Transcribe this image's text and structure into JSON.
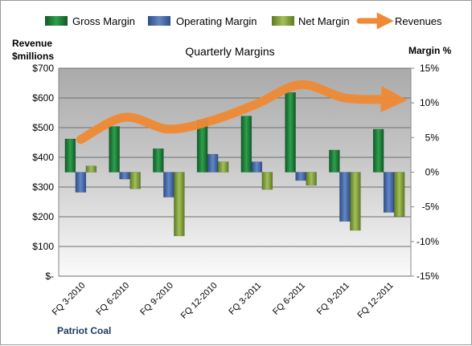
{
  "chart_data": {
    "type": "bar",
    "title": "Quarterly Margins",
    "company": "Patriot Coal",
    "y_left_label": [
      "Revenue",
      "$millions"
    ],
    "y_right_label": "Margin %",
    "y_left_ticks": [
      "$700",
      "$600",
      "$500",
      "$400",
      "$300",
      "$200",
      "$100",
      "$-"
    ],
    "y_right_ticks": [
      "15%",
      "10%",
      "5%",
      "0%",
      "-5%",
      "-10%",
      "-15%"
    ],
    "y_left_range": [
      0,
      700
    ],
    "y_right_range": [
      -15,
      15
    ],
    "categories": [
      "FQ 3-2010",
      "FQ 6-2010",
      "FQ 9-2010",
      "FQ 12-2010",
      "FQ 3-2011",
      "FQ 6-2011",
      "FQ 9-2011",
      "FQ 12-2011"
    ],
    "series": [
      {
        "name": "Gross Margin",
        "axis": "right",
        "color": "#1e8a3c",
        "values": [
          4.8,
          6.6,
          3.4,
          7.5,
          8.1,
          11.5,
          3.2,
          6.2
        ]
      },
      {
        "name": "Operating Margin",
        "axis": "right",
        "color": "#4a6fb0",
        "values": [
          -2.9,
          -1.0,
          -3.6,
          2.6,
          1.5,
          -1.2,
          -7.1,
          -5.8
        ]
      },
      {
        "name": "Net Margin",
        "axis": "right",
        "color": "#8aaa3e",
        "values": [
          0.9,
          -2.4,
          -9.2,
          1.5,
          -2.5,
          -1.9,
          -8.4,
          -6.4
        ]
      },
      {
        "name": "Revenues",
        "axis": "left",
        "color": "#ef8a35",
        "type": "line",
        "values": [
          460,
          535,
          495,
          525,
          580,
          645,
          600,
          595
        ]
      }
    ],
    "legend_position": "top",
    "grid": true
  }
}
